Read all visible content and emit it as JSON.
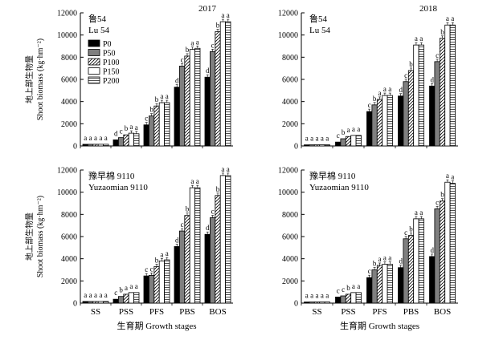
{
  "chart_data": {
    "type": "bar",
    "categories": [
      "SS",
      "PSS",
      "PFS",
      "PBS",
      "BOS"
    ],
    "series_names": [
      "P0",
      "P50",
      "P100",
      "P150",
      "P200"
    ],
    "series_fills": [
      "#000000",
      "#7f7f7f",
      "hatch",
      "#ffffff",
      "hlines"
    ],
    "ylim": [
      0,
      12000
    ],
    "yticks": [
      0,
      2000,
      4000,
      6000,
      8000,
      10000,
      12000
    ],
    "ylabel_cn": "地上部生物量",
    "ylabel_en": "Shoot biomass (kg·hm⁻²)",
    "xlabel": "生育期 Growth stages",
    "panels": [
      {
        "year": "2017",
        "cultivar_cn": "鲁54",
        "cultivar_en": "Lu 54",
        "legend": true,
        "values": [
          [
            150,
            150,
            150,
            150,
            150
          ],
          [
            550,
            750,
            1000,
            1150,
            1100
          ],
          [
            1900,
            2700,
            3600,
            3900,
            3900
          ],
          [
            5300,
            7200,
            8100,
            8700,
            8800
          ],
          [
            6200,
            8500,
            10300,
            11200,
            11200
          ]
        ],
        "labels": [
          [
            "a",
            "a",
            "a",
            "a",
            "a"
          ],
          [
            "d",
            "c",
            "b",
            "a",
            "a"
          ],
          [
            "c",
            "b",
            "b",
            "a",
            "a"
          ],
          [
            "d",
            "c",
            "b",
            "a",
            "a"
          ],
          [
            "d",
            "c",
            "b",
            "a",
            "a"
          ]
        ]
      },
      {
        "year": "2018",
        "cultivar_cn": "鲁54",
        "cultivar_en": "Lu 54",
        "legend": false,
        "values": [
          [
            100,
            100,
            100,
            100,
            100
          ],
          [
            350,
            650,
            850,
            950,
            950
          ],
          [
            3100,
            3700,
            4200,
            4550,
            4550
          ],
          [
            4500,
            5800,
            6800,
            9100,
            9100
          ],
          [
            5400,
            7600,
            9700,
            10900,
            10900
          ]
        ],
        "labels": [
          [
            "a",
            "a",
            "a",
            "a",
            "a"
          ],
          [
            "c",
            "b",
            "a",
            "a",
            "a"
          ],
          [
            "c",
            "b",
            "a",
            "a",
            "a"
          ],
          [
            "d",
            "c",
            "b",
            "a",
            "a"
          ],
          [
            "d",
            "c",
            "b",
            "a",
            "a"
          ]
        ]
      },
      {
        "year": "",
        "cultivar_cn": "豫早棉 9110",
        "cultivar_en": "Yuzaomian 9110",
        "legend": false,
        "values": [
          [
            150,
            150,
            150,
            150,
            150
          ],
          [
            350,
            600,
            800,
            950,
            950
          ],
          [
            2450,
            2500,
            3300,
            3800,
            3900
          ],
          [
            5100,
            6500,
            7900,
            10400,
            10400
          ],
          [
            6200,
            7700,
            9700,
            11500,
            11500
          ]
        ],
        "labels": [
          [
            "a",
            "a",
            "a",
            "a",
            "a"
          ],
          [
            "c",
            "b",
            "a",
            "a",
            "a"
          ],
          [
            "c",
            "c",
            "b",
            "a",
            "a"
          ],
          [
            "d",
            "c",
            "b",
            "a",
            "a"
          ],
          [
            "d",
            "c",
            "b",
            "a",
            "a"
          ]
        ]
      },
      {
        "year": "",
        "cultivar_cn": "豫早棉 9110",
        "cultivar_en": "Yuzaomian 9110",
        "legend": false,
        "values": [
          [
            100,
            100,
            100,
            100,
            100
          ],
          [
            550,
            650,
            800,
            950,
            950
          ],
          [
            2300,
            3000,
            3400,
            3500,
            3500
          ],
          [
            3200,
            5800,
            6100,
            7600,
            7600
          ],
          [
            4200,
            8500,
            9200,
            10900,
            10800
          ]
        ],
        "labels": [
          [
            "a",
            "a",
            "a",
            "a",
            "a"
          ],
          [
            "c",
            "c",
            "b",
            "a",
            "a"
          ],
          [
            "c",
            "b",
            "a",
            "a",
            "a"
          ],
          [
            "d",
            "c",
            "b",
            "a",
            "a"
          ],
          [
            "d",
            "c",
            "b",
            "a",
            "a"
          ]
        ]
      }
    ]
  }
}
